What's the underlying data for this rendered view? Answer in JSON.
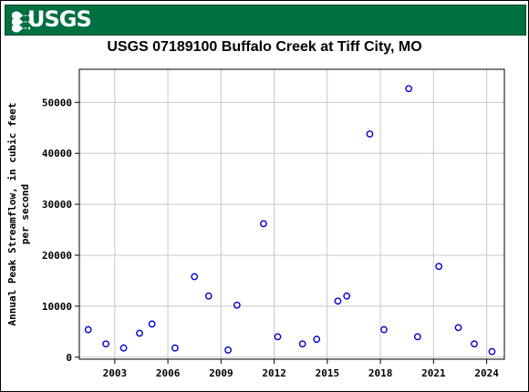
{
  "header": {
    "logo_text": "USGS"
  },
  "chart_data": {
    "type": "scatter",
    "title": "USGS 07189100 Buffalo Creek at Tiff City, MO",
    "xlabel": "",
    "ylabel_lines": [
      "Annual Peak Streamflow, in cubic feet",
      "per second"
    ],
    "xlim": [
      2001.0,
      2025.0
    ],
    "ylim": [
      -400,
      56500
    ],
    "x_ticks": [
      2003,
      2006,
      2009,
      2012,
      2015,
      2018,
      2021,
      2024
    ],
    "y_ticks": [
      0,
      10000,
      20000,
      30000,
      40000,
      50000
    ],
    "grid": true,
    "marker": "open-circle",
    "marker_color": "#0000cc",
    "points": [
      {
        "x": 2001.5,
        "y": 5400
      },
      {
        "x": 2002.5,
        "y": 2600
      },
      {
        "x": 2003.5,
        "y": 1800
      },
      {
        "x": 2004.4,
        "y": 4700
      },
      {
        "x": 2005.1,
        "y": 6500
      },
      {
        "x": 2006.4,
        "y": 1800
      },
      {
        "x": 2007.5,
        "y": 15800
      },
      {
        "x": 2008.3,
        "y": 12000
      },
      {
        "x": 2009.4,
        "y": 1400
      },
      {
        "x": 2009.9,
        "y": 10200
      },
      {
        "x": 2011.4,
        "y": 26200
      },
      {
        "x": 2012.2,
        "y": 4000
      },
      {
        "x": 2013.6,
        "y": 2600
      },
      {
        "x": 2014.4,
        "y": 3500
      },
      {
        "x": 2015.6,
        "y": 11000
      },
      {
        "x": 2016.1,
        "y": 12000
      },
      {
        "x": 2017.4,
        "y": 43800
      },
      {
        "x": 2018.2,
        "y": 5400
      },
      {
        "x": 2019.6,
        "y": 52700
      },
      {
        "x": 2020.1,
        "y": 4000
      },
      {
        "x": 2021.3,
        "y": 17800
      },
      {
        "x": 2022.4,
        "y": 5800
      },
      {
        "x": 2023.3,
        "y": 2600
      },
      {
        "x": 2024.3,
        "y": 1100
      }
    ]
  }
}
